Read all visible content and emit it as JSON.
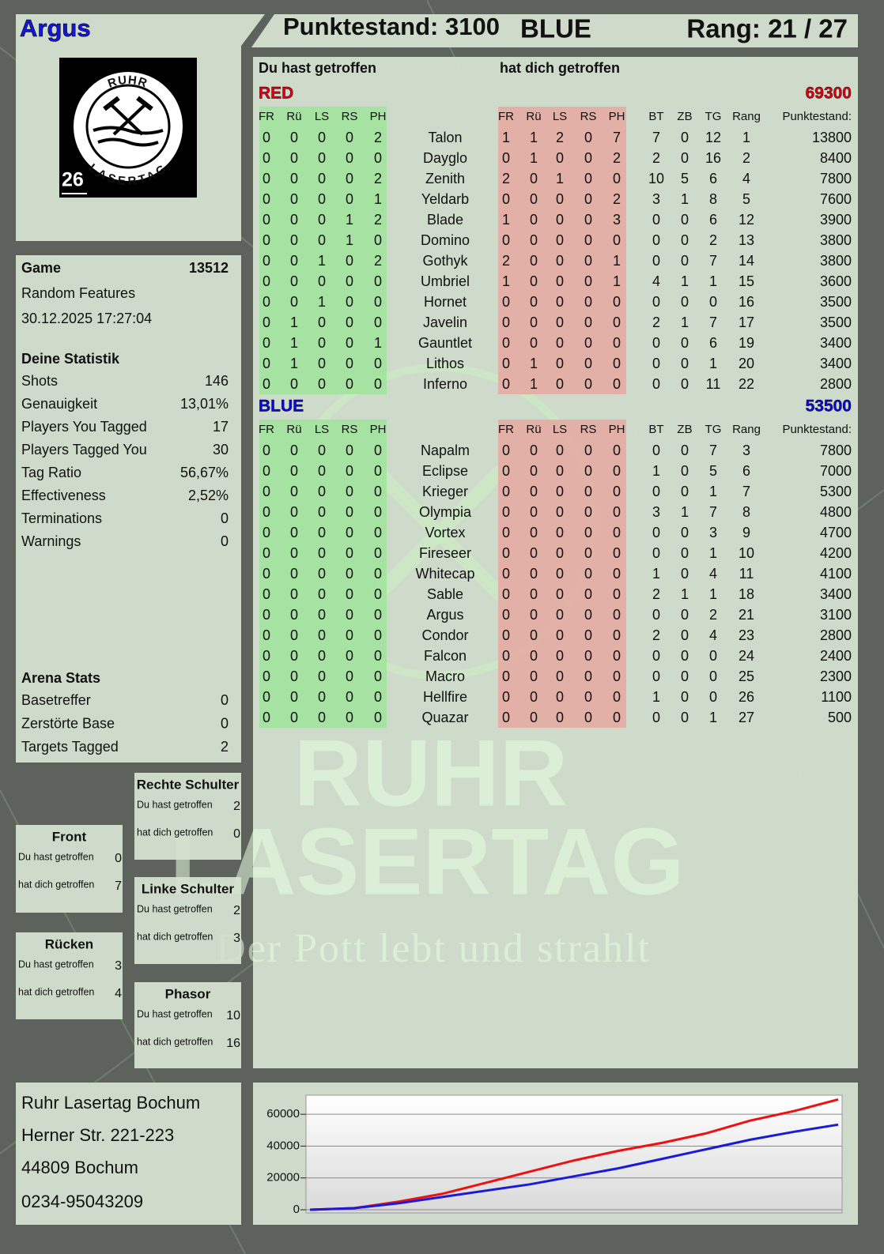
{
  "header": {
    "player": "Argus",
    "score": "Punktestand: 3100",
    "team": "BLUE",
    "rank": "Rang: 21 / 27"
  },
  "logo": {
    "top": "RUHR",
    "bottom": "LASERTAG",
    "number": 26
  },
  "game": {
    "label": "Game",
    "id": 13512,
    "mode": "Random Features",
    "date": "30.12.2025 17:27:04"
  },
  "statistics": {
    "title": "Deine Statistik",
    "rows": [
      [
        "Shots",
        146
      ],
      [
        "Genauigkeit",
        "13,01%"
      ],
      [
        "Players You Tagged",
        17
      ],
      [
        "Players Tagged You",
        30
      ],
      [
        "Tag Ratio",
        "56,67%"
      ],
      [
        "Effectiveness",
        "2,52%"
      ],
      [
        "Terminations",
        0
      ],
      [
        "Warnings",
        0
      ]
    ]
  },
  "arena": {
    "title": "Arena Stats",
    "rows": [
      [
        "Basetreffer",
        0
      ],
      [
        "Zerstörte Base",
        0
      ],
      [
        "Targets Tagged",
        2
      ]
    ]
  },
  "zones": [
    {
      "title": "Rechte Schulter",
      "rows": [
        [
          "Du hast getroffen",
          2
        ],
        [
          "hat dich getroffen",
          0
        ]
      ]
    },
    {
      "title": "Front",
      "rows": [
        [
          "Du hast getroffen",
          0
        ],
        [
          "hat dich getroffen",
          7
        ]
      ]
    },
    {
      "title": "Linke Schulter",
      "rows": [
        [
          "Du hast getroffen",
          2
        ],
        [
          "hat dich getroffen",
          3
        ]
      ]
    },
    {
      "title": "Rücken",
      "rows": [
        [
          "Du hast getroffen",
          3
        ],
        [
          "hat dich getroffen",
          4
        ]
      ]
    },
    {
      "title": "Phasor",
      "rows": [
        [
          "Du hast getroffen",
          10
        ],
        [
          "hat dich getroffen",
          16
        ]
      ]
    }
  ],
  "address": [
    "Ruhr Lasertag Bochum",
    "Herner Str. 221-223",
    "44809 Bochum",
    "0234-95043209"
  ],
  "table": {
    "hit_title": "Du hast getroffen",
    "got_title": "hat dich getroffen",
    "zone_columns": [
      "FR",
      "Rü",
      "LS",
      "RS",
      "PH"
    ],
    "stat_columns": [
      "BT",
      "ZB",
      "TG",
      "Rang",
      "Punktestand:"
    ],
    "teams": [
      {
        "name": "RED",
        "color": "#e0000f",
        "total": 69300,
        "rows": [
          {
            "name": "Talon",
            "hit": [
              0,
              0,
              0,
              0,
              2
            ],
            "got": [
              1,
              1,
              2,
              0,
              7
            ],
            "stats": [
              7,
              0,
              12,
              1,
              13800
            ]
          },
          {
            "name": "Dayglo",
            "hit": [
              0,
              0,
              0,
              0,
              0
            ],
            "got": [
              0,
              1,
              0,
              0,
              2
            ],
            "stats": [
              2,
              0,
              16,
              2,
              8400
            ]
          },
          {
            "name": "Zenith",
            "hit": [
              0,
              0,
              0,
              0,
              2
            ],
            "got": [
              2,
              0,
              1,
              0,
              0
            ],
            "stats": [
              10,
              5,
              6,
              4,
              7800
            ]
          },
          {
            "name": "Yeldarb",
            "hit": [
              0,
              0,
              0,
              0,
              1
            ],
            "got": [
              0,
              0,
              0,
              0,
              2
            ],
            "stats": [
              3,
              1,
              8,
              5,
              7600
            ]
          },
          {
            "name": "Blade",
            "hit": [
              0,
              0,
              0,
              1,
              2
            ],
            "got": [
              1,
              0,
              0,
              0,
              3
            ],
            "stats": [
              0,
              0,
              6,
              12,
              3900
            ]
          },
          {
            "name": "Domino",
            "hit": [
              0,
              0,
              0,
              1,
              0
            ],
            "got": [
              0,
              0,
              0,
              0,
              0
            ],
            "stats": [
              0,
              0,
              2,
              13,
              3800
            ]
          },
          {
            "name": "Gothyk",
            "hit": [
              0,
              0,
              1,
              0,
              2
            ],
            "got": [
              2,
              0,
              0,
              0,
              1
            ],
            "stats": [
              0,
              0,
              7,
              14,
              3800
            ]
          },
          {
            "name": "Umbriel",
            "hit": [
              0,
              0,
              0,
              0,
              0
            ],
            "got": [
              1,
              0,
              0,
              0,
              1
            ],
            "stats": [
              4,
              1,
              1,
              15,
              3600
            ]
          },
          {
            "name": "Hornet",
            "hit": [
              0,
              0,
              1,
              0,
              0
            ],
            "got": [
              0,
              0,
              0,
              0,
              0
            ],
            "stats": [
              0,
              0,
              0,
              16,
              3500
            ]
          },
          {
            "name": "Javelin",
            "hit": [
              0,
              1,
              0,
              0,
              0
            ],
            "got": [
              0,
              0,
              0,
              0,
              0
            ],
            "stats": [
              2,
              1,
              7,
              17,
              3500
            ]
          },
          {
            "name": "Gauntlet",
            "hit": [
              0,
              1,
              0,
              0,
              1
            ],
            "got": [
              0,
              0,
              0,
              0,
              0
            ],
            "stats": [
              0,
              0,
              6,
              19,
              3400
            ]
          },
          {
            "name": "Lithos",
            "hit": [
              0,
              1,
              0,
              0,
              0
            ],
            "got": [
              0,
              1,
              0,
              0,
              0
            ],
            "stats": [
              0,
              0,
              1,
              20,
              3400
            ]
          },
          {
            "name": "Inferno",
            "hit": [
              0,
              0,
              0,
              0,
              0
            ],
            "got": [
              0,
              1,
              0,
              0,
              0
            ],
            "stats": [
              0,
              0,
              11,
              22,
              2800
            ]
          }
        ]
      },
      {
        "name": "BLUE",
        "color": "#0a0ad8",
        "total": 53500,
        "rows": [
          {
            "name": "Napalm",
            "hit": [
              0,
              0,
              0,
              0,
              0
            ],
            "got": [
              0,
              0,
              0,
              0,
              0
            ],
            "stats": [
              0,
              0,
              7,
              3,
              7800
            ]
          },
          {
            "name": "Eclipse",
            "hit": [
              0,
              0,
              0,
              0,
              0
            ],
            "got": [
              0,
              0,
              0,
              0,
              0
            ],
            "stats": [
              1,
              0,
              5,
              6,
              7000
            ]
          },
          {
            "name": "Krieger",
            "hit": [
              0,
              0,
              0,
              0,
              0
            ],
            "got": [
              0,
              0,
              0,
              0,
              0
            ],
            "stats": [
              0,
              0,
              1,
              7,
              5300
            ]
          },
          {
            "name": "Olympia",
            "hit": [
              0,
              0,
              0,
              0,
              0
            ],
            "got": [
              0,
              0,
              0,
              0,
              0
            ],
            "stats": [
              3,
              1,
              7,
              8,
              4800
            ]
          },
          {
            "name": "Vortex",
            "hit": [
              0,
              0,
              0,
              0,
              0
            ],
            "got": [
              0,
              0,
              0,
              0,
              0
            ],
            "stats": [
              0,
              0,
              3,
              9,
              4700
            ]
          },
          {
            "name": "Fireseer",
            "hit": [
              0,
              0,
              0,
              0,
              0
            ],
            "got": [
              0,
              0,
              0,
              0,
              0
            ],
            "stats": [
              0,
              0,
              1,
              10,
              4200
            ]
          },
          {
            "name": "Whitecap",
            "hit": [
              0,
              0,
              0,
              0,
              0
            ],
            "got": [
              0,
              0,
              0,
              0,
              0
            ],
            "stats": [
              1,
              0,
              4,
              11,
              4100
            ]
          },
          {
            "name": "Sable",
            "hit": [
              0,
              0,
              0,
              0,
              0
            ],
            "got": [
              0,
              0,
              0,
              0,
              0
            ],
            "stats": [
              2,
              1,
              1,
              18,
              3400
            ]
          },
          {
            "name": "Argus",
            "hit": [
              0,
              0,
              0,
              0,
              0
            ],
            "got": [
              0,
              0,
              0,
              0,
              0
            ],
            "stats": [
              0,
              0,
              2,
              21,
              3100
            ]
          },
          {
            "name": "Condor",
            "hit": [
              0,
              0,
              0,
              0,
              0
            ],
            "got": [
              0,
              0,
              0,
              0,
              0
            ],
            "stats": [
              2,
              0,
              4,
              23,
              2800
            ]
          },
          {
            "name": "Falcon",
            "hit": [
              0,
              0,
              0,
              0,
              0
            ],
            "got": [
              0,
              0,
              0,
              0,
              0
            ],
            "stats": [
              0,
              0,
              0,
              24,
              2400
            ]
          },
          {
            "name": "Macro",
            "hit": [
              0,
              0,
              0,
              0,
              0
            ],
            "got": [
              0,
              0,
              0,
              0,
              0
            ],
            "stats": [
              0,
              0,
              0,
              25,
              2300
            ]
          },
          {
            "name": "Hellfire",
            "hit": [
              0,
              0,
              0,
              0,
              0
            ],
            "got": [
              0,
              0,
              0,
              0,
              0
            ],
            "stats": [
              1,
              0,
              0,
              26,
              1100
            ]
          },
          {
            "name": "Quazar",
            "hit": [
              0,
              0,
              0,
              0,
              0
            ],
            "got": [
              0,
              0,
              0,
              0,
              0
            ],
            "stats": [
              0,
              0,
              1,
              27,
              500
            ]
          }
        ]
      }
    ]
  },
  "watermark": {
    "line1": "RUHR",
    "line2": "LASERTAG",
    "slogan": "Der Pott lebt und strahlt"
  },
  "chart_data": {
    "type": "line",
    "ylim": [
      0,
      72000
    ],
    "yticks": [
      0,
      20000,
      40000,
      60000
    ],
    "grid": true,
    "series": [
      {
        "color": "#ee1111",
        "values": [
          0,
          1000,
          5000,
          10000,
          17000,
          24000,
          31000,
          37000,
          42000,
          48000,
          56000,
          62000,
          69300
        ]
      },
      {
        "color": "#1a1ad8",
        "values": [
          0,
          1000,
          4000,
          8000,
          12000,
          16000,
          21000,
          26000,
          32000,
          38000,
          44000,
          49000,
          53500
        ]
      }
    ]
  }
}
